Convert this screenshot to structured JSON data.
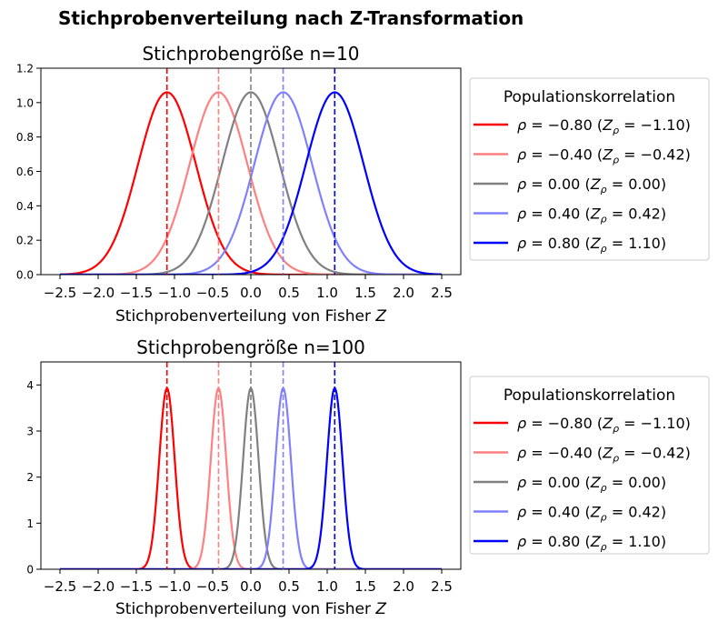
{
  "figure": {
    "suptitle": "Stichprobenverteilung nach Z-Transformation"
  },
  "chart_data": [
    {
      "type": "line",
      "title": "Stichprobengröße n=10",
      "xlabel_prefix": "Stichprobenverteilung von Fisher ",
      "xlabel_var": "Z",
      "ylabel": "",
      "sample_size": 10,
      "xlim": [
        -2.75,
        2.75
      ],
      "ylim": [
        0,
        1.2
      ],
      "x_range": [
        -2.5,
        2.5
      ],
      "xticks": [
        -2.5,
        -2.0,
        -1.5,
        -1.0,
        -0.5,
        0.0,
        0.5,
        1.0,
        1.5,
        2.0,
        2.5
      ],
      "xtick_labels": [
        "−2.5",
        "−2.0",
        "−1.5",
        "−1.0",
        "−0.5",
        "0.0",
        "0.5",
        "1.0",
        "1.5",
        "2.0",
        "2.5"
      ],
      "yticks": [
        0.0,
        0.2,
        0.4,
        0.6,
        0.8,
        1.0,
        1.2
      ],
      "ytick_labels": [
        "0.0",
        "0.2",
        "0.4",
        "0.6",
        "0.8",
        "1.0",
        "1.2"
      ],
      "grid": false,
      "legend": {
        "title": "Populationskorrelation",
        "placement": "outside-right",
        "entries": [
          {
            "rho": "−0.80",
            "z": "−1.10"
          },
          {
            "rho": "−0.40",
            "z": "−0.42"
          },
          {
            "rho": "0.00",
            "z": "0.00"
          },
          {
            "rho": "0.40",
            "z": "0.42"
          },
          {
            "rho": "0.80",
            "z": "1.10"
          }
        ]
      },
      "series": [
        {
          "rho": -0.8,
          "mean": -1.0986,
          "sd": 0.378,
          "peak": 1.06,
          "color": "#ff0000"
        },
        {
          "rho": -0.4,
          "mean": -0.4236,
          "sd": 0.378,
          "peak": 1.06,
          "color": "#ff8080"
        },
        {
          "rho": 0.0,
          "mean": 0.0,
          "sd": 0.378,
          "peak": 1.06,
          "color": "#808080"
        },
        {
          "rho": 0.4,
          "mean": 0.4236,
          "sd": 0.378,
          "peak": 1.06,
          "color": "#8080ff"
        },
        {
          "rho": 0.8,
          "mean": 1.0986,
          "sd": 0.378,
          "peak": 1.06,
          "color": "#0000ff"
        }
      ]
    },
    {
      "type": "line",
      "title": "Stichprobengröße n=100",
      "xlabel_prefix": "Stichprobenverteilung von Fisher ",
      "xlabel_var": "Z",
      "ylabel": "",
      "sample_size": 100,
      "xlim": [
        -2.75,
        2.75
      ],
      "ylim": [
        0,
        4.5
      ],
      "x_range": [
        -2.5,
        2.5
      ],
      "xticks": [
        -2.5,
        -2.0,
        -1.5,
        -1.0,
        -0.5,
        0.0,
        0.5,
        1.0,
        1.5,
        2.0,
        2.5
      ],
      "xtick_labels": [
        "−2.5",
        "−2.0",
        "−1.5",
        "−1.0",
        "−0.5",
        "0.0",
        "0.5",
        "1.0",
        "1.5",
        "2.0",
        "2.5"
      ],
      "yticks": [
        0,
        1,
        2,
        3,
        4
      ],
      "ytick_labels": [
        "0",
        "1",
        "2",
        "3",
        "4"
      ],
      "grid": false,
      "legend": {
        "title": "Populationskorrelation",
        "placement": "outside-right",
        "entries": [
          {
            "rho": "−0.80",
            "z": "−1.10"
          },
          {
            "rho": "−0.40",
            "z": "−0.42"
          },
          {
            "rho": "0.00",
            "z": "0.00"
          },
          {
            "rho": "0.40",
            "z": "0.42"
          },
          {
            "rho": "0.80",
            "z": "1.10"
          }
        ]
      },
      "series": [
        {
          "rho": -0.8,
          "mean": -1.0986,
          "sd": 0.1015,
          "peak": 3.93,
          "color": "#ff0000"
        },
        {
          "rho": -0.4,
          "mean": -0.4236,
          "sd": 0.1015,
          "peak": 3.93,
          "color": "#ff8080"
        },
        {
          "rho": 0.0,
          "mean": 0.0,
          "sd": 0.1015,
          "peak": 3.93,
          "color": "#808080"
        },
        {
          "rho": 0.4,
          "mean": 0.4236,
          "sd": 0.1015,
          "peak": 3.93,
          "color": "#8080ff"
        },
        {
          "rho": 0.8,
          "mean": 1.0986,
          "sd": 0.1015,
          "peak": 3.93,
          "color": "#0000ff"
        }
      ]
    }
  ]
}
